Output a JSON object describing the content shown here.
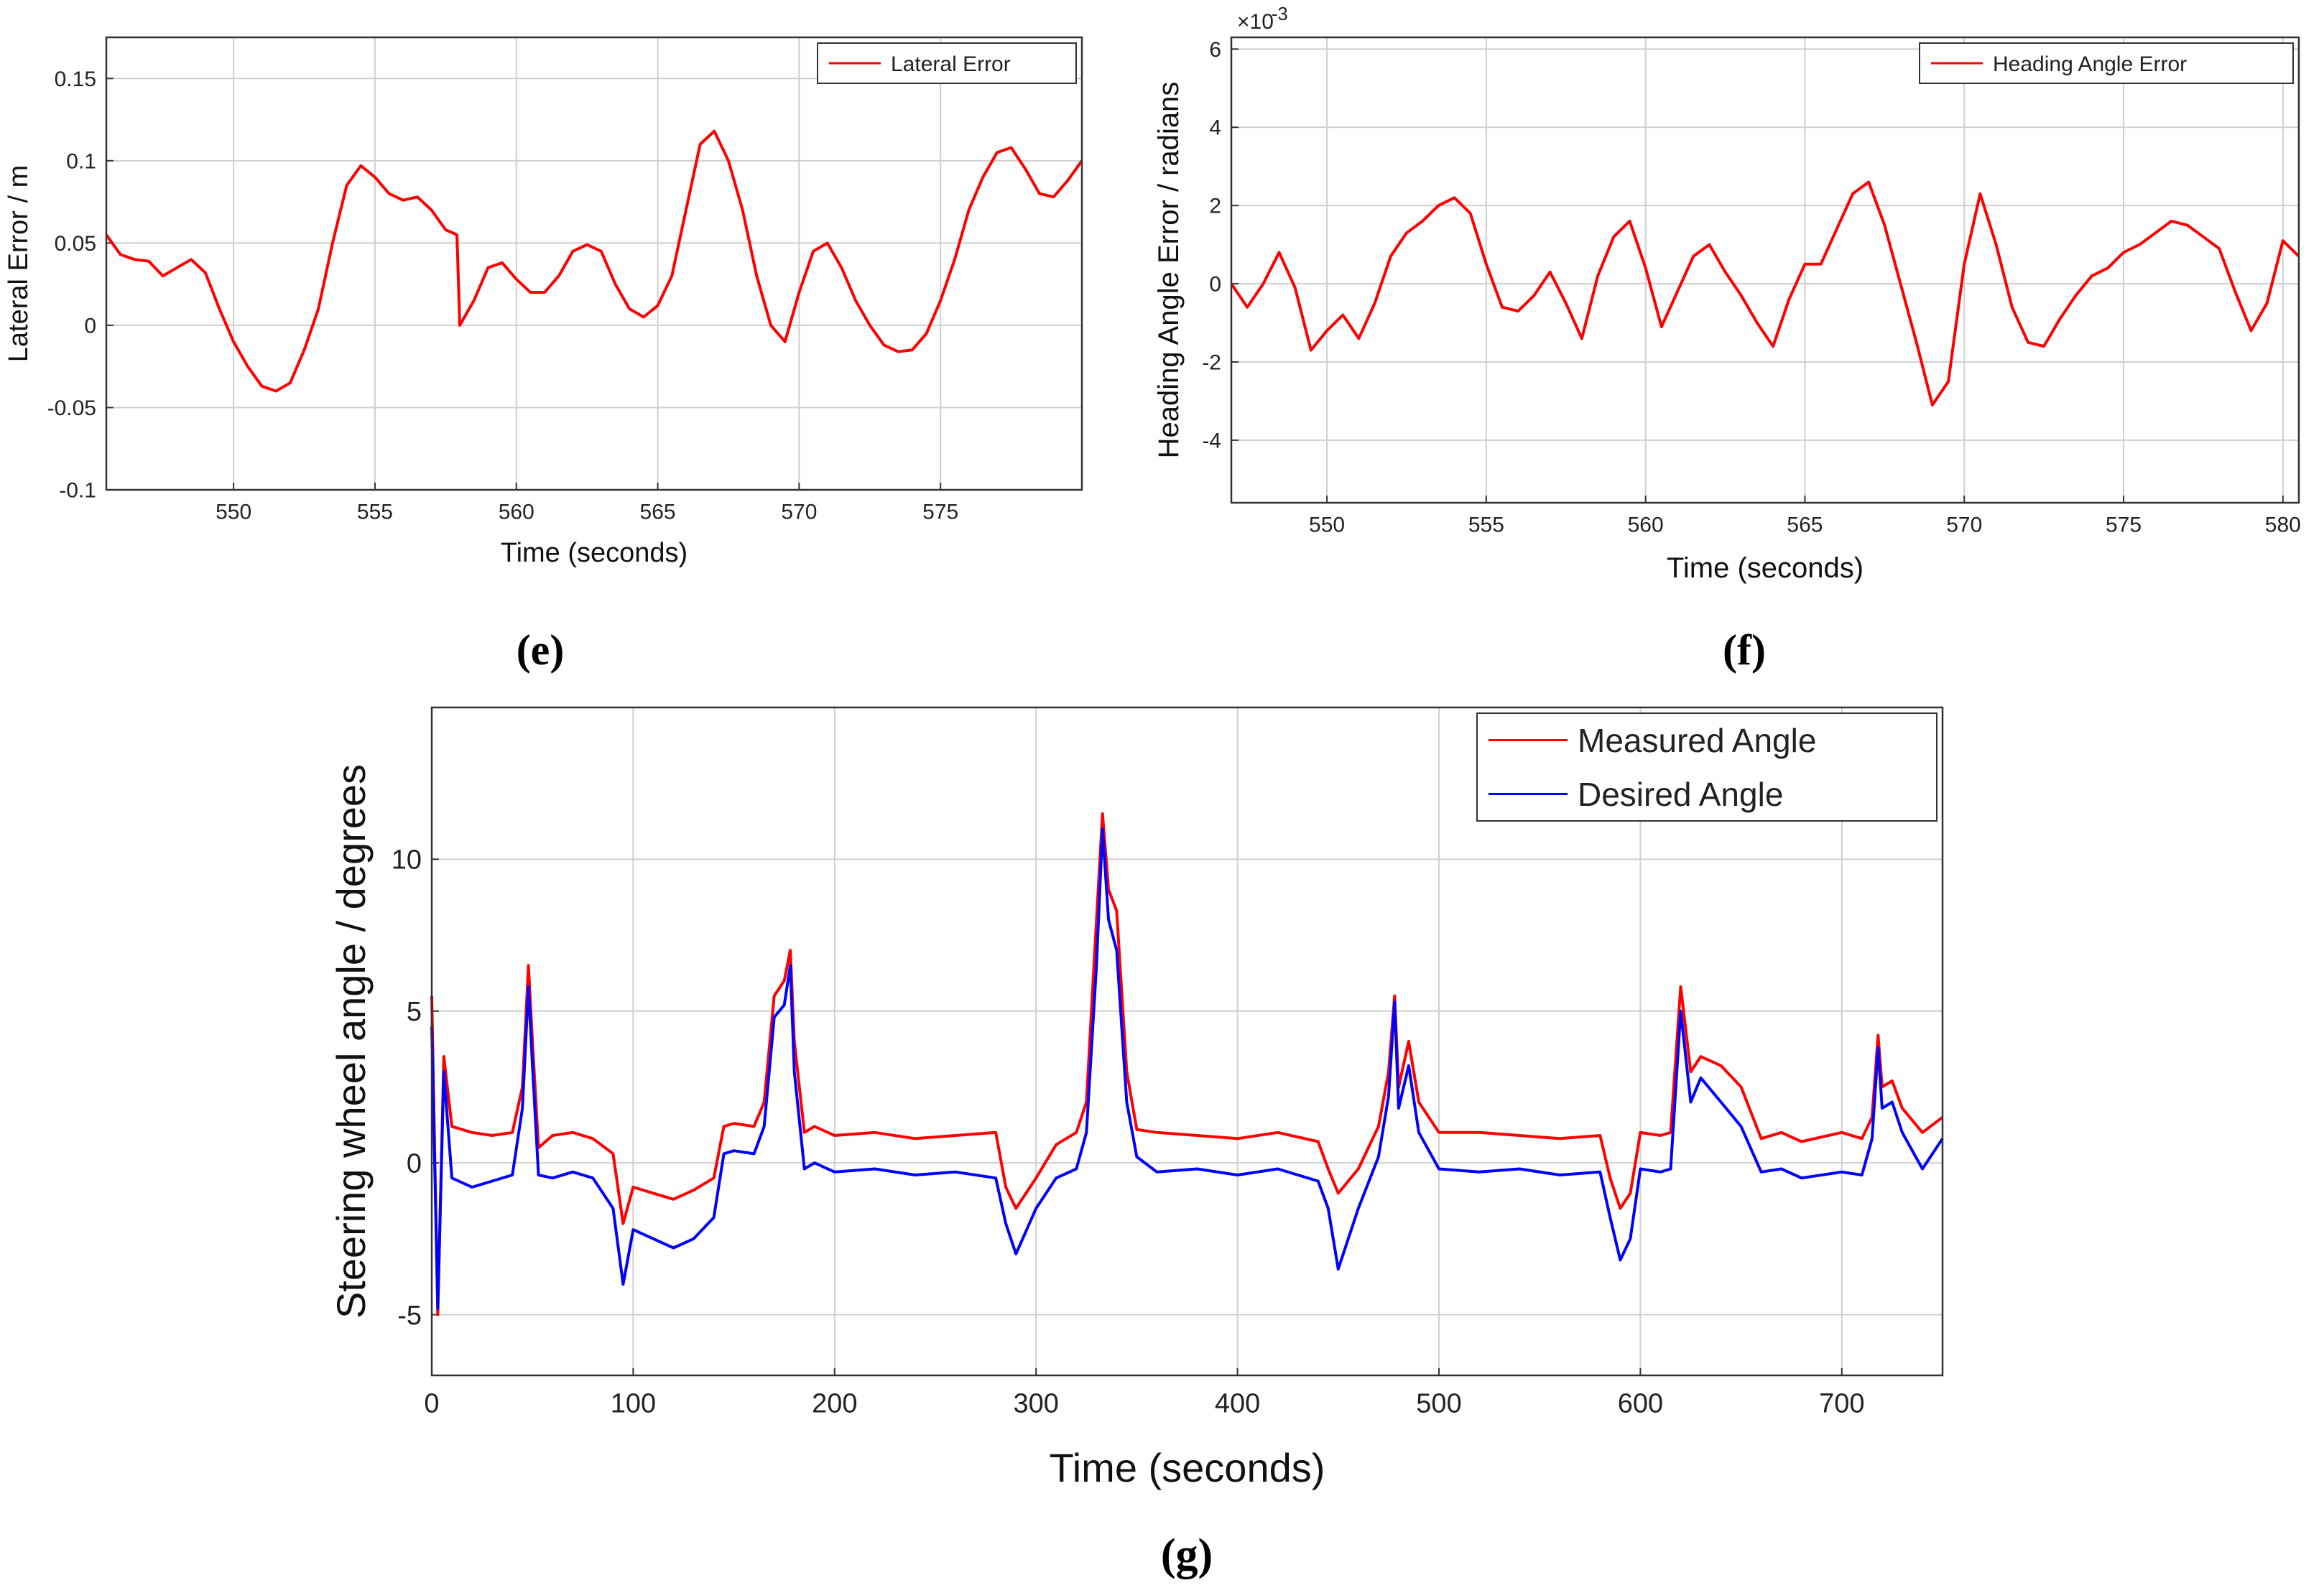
{
  "chart_data": [
    {
      "id": "e",
      "type": "line",
      "panel_label": "(e)",
      "xlabel": "Time (seconds)",
      "ylabel": "Lateral Error / m",
      "xlim": [
        545.5,
        580
      ],
      "ylim": [
        -0.1,
        0.175
      ],
      "xticks": [
        550,
        555,
        560,
        565,
        570,
        575
      ],
      "xtick_labels": [
        "550",
        "555",
        "560",
        "565",
        "570",
        "575"
      ],
      "yticks": [
        -0.1,
        -0.05,
        0,
        0.05,
        0.1,
        0.15
      ],
      "ytick_labels": [
        "-0.1",
        "-0.05",
        "0",
        "0.05",
        "0.1",
        "0.15"
      ],
      "grid": true,
      "legend_position": "top-right",
      "series": [
        {
          "name": "Lateral Error",
          "color": "#ff0000",
          "x": [
            545.5,
            546,
            546.5,
            547,
            547.5,
            548,
            548.5,
            549,
            549.5,
            550,
            550.5,
            551,
            551.5,
            552,
            552.5,
            553,
            553.5,
            554,
            554.5,
            555,
            555.5,
            556,
            556.5,
            557,
            557.5,
            557.9,
            558,
            558.5,
            559,
            559.5,
            560,
            560.5,
            561,
            561.5,
            562,
            562.5,
            563,
            563.5,
            564,
            564.5,
            565,
            565.5,
            566,
            566.5,
            567,
            567.5,
            568,
            568.5,
            569,
            569.5,
            570,
            570.5,
            571,
            571.5,
            572,
            572.5,
            573,
            573.5,
            574,
            574.5,
            575,
            575.5,
            576,
            576.5,
            577,
            577.5,
            578,
            578.5,
            579,
            579.5,
            580
          ],
          "y": [
            0.055,
            0.043,
            0.04,
            0.039,
            0.03,
            0.035,
            0.04,
            0.032,
            0.01,
            -0.01,
            -0.025,
            -0.037,
            -0.04,
            -0.035,
            -0.015,
            0.01,
            0.05,
            0.085,
            0.097,
            0.09,
            0.08,
            0.076,
            0.078,
            0.07,
            0.058,
            0.055,
            0.0,
            0.015,
            0.035,
            0.038,
            0.028,
            0.02,
            0.02,
            0.03,
            0.045,
            0.049,
            0.045,
            0.025,
            0.01,
            0.005,
            0.012,
            0.03,
            0.07,
            0.11,
            0.118,
            0.1,
            0.07,
            0.03,
            0.0,
            -0.01,
            0.02,
            0.045,
            0.05,
            0.035,
            0.015,
            0.0,
            -0.012,
            -0.016,
            -0.015,
            -0.005,
            0.015,
            0.04,
            0.07,
            0.09,
            0.105,
            0.108,
            0.095,
            0.08,
            0.078,
            0.088,
            0.1
          ]
        }
      ]
    },
    {
      "id": "f",
      "type": "line",
      "panel_label": "(f)",
      "xlabel": "Time (seconds)",
      "ylabel": "Heading Angle Error / radians",
      "multiplier": "×10",
      "exponent": "-3",
      "xlim": [
        547,
        580.5
      ],
      "ylim": [
        -5.6,
        6.3
      ],
      "xticks": [
        550,
        555,
        560,
        565,
        570,
        575,
        580
      ],
      "xtick_labels": [
        "550",
        "555",
        "560",
        "565",
        "570",
        "575",
        "580"
      ],
      "yticks": [
        -4,
        -2,
        0,
        2,
        4,
        6
      ],
      "ytick_labels": [
        "-4",
        "-2",
        "0",
        "2",
        "4",
        "6"
      ],
      "grid": true,
      "legend_position": "top-right",
      "series": [
        {
          "name": "Heading Angle Error",
          "color": "#ff0000",
          "x": [
            547,
            547.5,
            548,
            548.5,
            549,
            549.5,
            550,
            550.5,
            551,
            551.5,
            552,
            552.5,
            553,
            553.5,
            554,
            554.5,
            555,
            555.5,
            556,
            556.5,
            557,
            557.5,
            558,
            558.5,
            559,
            559.5,
            560,
            560.5,
            561,
            561.5,
            562,
            562.5,
            563,
            563.5,
            564,
            564.5,
            565,
            565.5,
            566,
            566.5,
            567,
            567.5,
            568,
            568.5,
            569,
            569.5,
            570,
            570.5,
            571,
            571.5,
            572,
            572.5,
            573,
            573.5,
            574,
            574.5,
            575,
            575.5,
            576,
            576.5,
            577,
            577.5,
            578,
            578.5,
            579,
            579.5,
            580,
            580.5
          ],
          "y": [
            0.0,
            -0.6,
            0.0,
            0.8,
            -0.1,
            -1.7,
            -1.2,
            -0.8,
            -1.4,
            -0.5,
            0.7,
            1.3,
            1.6,
            2.0,
            2.2,
            1.8,
            0.5,
            -0.6,
            -0.7,
            -0.3,
            0.3,
            -0.5,
            -1.4,
            0.2,
            1.2,
            1.6,
            0.4,
            -1.1,
            -0.2,
            0.7,
            1.0,
            0.3,
            -0.3,
            -1.0,
            -1.6,
            -0.4,
            0.5,
            0.5,
            1.4,
            2.3,
            2.6,
            1.5,
            0.0,
            -1.5,
            -3.1,
            -2.5,
            0.5,
            2.3,
            1.0,
            -0.6,
            -1.5,
            -1.6,
            -0.9,
            -0.3,
            0.2,
            0.4,
            0.8,
            1.0,
            1.3,
            1.6,
            1.5,
            1.2,
            0.9,
            -0.2,
            -1.2,
            -0.5,
            1.1,
            0.7
          ]
        }
      ]
    },
    {
      "id": "g",
      "type": "line",
      "panel_label": "(g)",
      "xlabel": "Time (seconds)",
      "ylabel": "Steering wheel angle / degrees",
      "xlim": [
        0,
        750
      ],
      "ylim": [
        -7,
        15
      ],
      "xticks": [
        0,
        100,
        200,
        300,
        400,
        500,
        600,
        700
      ],
      "xtick_labels": [
        "0",
        "100",
        "200",
        "300",
        "400",
        "500",
        "600",
        "700"
      ],
      "yticks": [
        -5,
        0,
        5,
        10
      ],
      "ytick_labels": [
        "-5",
        "0",
        "5",
        "10"
      ],
      "grid": true,
      "legend_position": "top-right",
      "series": [
        {
          "name": "Measured Angle",
          "color": "#ff0000",
          "x": [
            0,
            3,
            6,
            10,
            20,
            30,
            40,
            45,
            48,
            50,
            53,
            60,
            70,
            80,
            90,
            95,
            100,
            110,
            120,
            130,
            140,
            145,
            150,
            160,
            165,
            170,
            175,
            178,
            180,
            185,
            190,
            200,
            220,
            240,
            260,
            280,
            285,
            290,
            300,
            310,
            320,
            325,
            330,
            333,
            336,
            340,
            345,
            350,
            360,
            380,
            400,
            420,
            440,
            445,
            450,
            460,
            470,
            475,
            478,
            480,
            485,
            490,
            500,
            520,
            540,
            560,
            580,
            585,
            590,
            595,
            600,
            610,
            615,
            620,
            625,
            630,
            640,
            650,
            660,
            670,
            680,
            700,
            710,
            715,
            718,
            720,
            725,
            730,
            740,
            750
          ],
          "y": [
            5.5,
            -5.0,
            3.5,
            1.2,
            1.0,
            0.9,
            1.0,
            2.5,
            6.5,
            4.0,
            0.5,
            0.9,
            1.0,
            0.8,
            0.3,
            -2.0,
            -0.8,
            -1.0,
            -1.2,
            -0.9,
            -0.5,
            1.2,
            1.3,
            1.2,
            2.0,
            5.5,
            6.0,
            7.0,
            4.0,
            1.0,
            1.2,
            0.9,
            1.0,
            0.8,
            0.9,
            1.0,
            -0.8,
            -1.5,
            -0.5,
            0.6,
            1.0,
            2.0,
            8.0,
            11.5,
            9.0,
            8.3,
            3.0,
            1.1,
            1.0,
            0.9,
            0.8,
            1.0,
            0.7,
            -0.2,
            -1.0,
            -0.2,
            1.2,
            3.0,
            5.5,
            2.5,
            4.0,
            2.0,
            1.0,
            1.0,
            0.9,
            0.8,
            0.9,
            -0.5,
            -1.5,
            -1.0,
            1.0,
            0.9,
            1.0,
            5.8,
            3.0,
            3.5,
            3.2,
            2.5,
            0.8,
            1.0,
            0.7,
            1.0,
            0.8,
            1.5,
            4.2,
            2.5,
            2.7,
            1.8,
            1.0,
            1.5
          ]
        },
        {
          "name": "Desired Angle",
          "color": "#0000ff",
          "x": [
            0,
            3,
            6,
            10,
            20,
            30,
            40,
            45,
            48,
            50,
            53,
            60,
            70,
            80,
            90,
            95,
            100,
            110,
            120,
            130,
            140,
            145,
            150,
            160,
            165,
            170,
            175,
            178,
            180,
            185,
            190,
            200,
            220,
            240,
            260,
            280,
            285,
            290,
            300,
            310,
            320,
            325,
            330,
            333,
            336,
            340,
            345,
            350,
            360,
            380,
            400,
            420,
            440,
            445,
            450,
            460,
            470,
            475,
            478,
            480,
            485,
            490,
            500,
            520,
            540,
            560,
            580,
            585,
            590,
            595,
            600,
            610,
            615,
            620,
            625,
            630,
            640,
            650,
            660,
            670,
            680,
            700,
            710,
            715,
            718,
            720,
            725,
            730,
            740,
            750
          ],
          "y": [
            4.5,
            -4.8,
            3.0,
            -0.5,
            -0.8,
            -0.6,
            -0.4,
            1.8,
            5.8,
            3.2,
            -0.4,
            -0.5,
            -0.3,
            -0.5,
            -1.5,
            -4.0,
            -2.2,
            -2.5,
            -2.8,
            -2.5,
            -1.8,
            0.3,
            0.4,
            0.3,
            1.2,
            4.8,
            5.2,
            6.5,
            3.0,
            -0.2,
            0.0,
            -0.3,
            -0.2,
            -0.4,
            -0.3,
            -0.5,
            -2.0,
            -3.0,
            -1.5,
            -0.5,
            -0.2,
            1.0,
            6.5,
            11.0,
            8.0,
            7.0,
            2.0,
            0.2,
            -0.3,
            -0.2,
            -0.4,
            -0.2,
            -0.6,
            -1.5,
            -3.5,
            -1.5,
            0.2,
            2.2,
            5.3,
            1.8,
            3.2,
            1.0,
            -0.2,
            -0.3,
            -0.2,
            -0.4,
            -0.3,
            -1.8,
            -3.2,
            -2.5,
            -0.2,
            -0.3,
            -0.2,
            5.0,
            2.0,
            2.8,
            2.0,
            1.2,
            -0.3,
            -0.2,
            -0.5,
            -0.3,
            -0.4,
            0.8,
            3.8,
            1.8,
            2.0,
            1.0,
            -0.2,
            0.8
          ]
        }
      ]
    }
  ]
}
